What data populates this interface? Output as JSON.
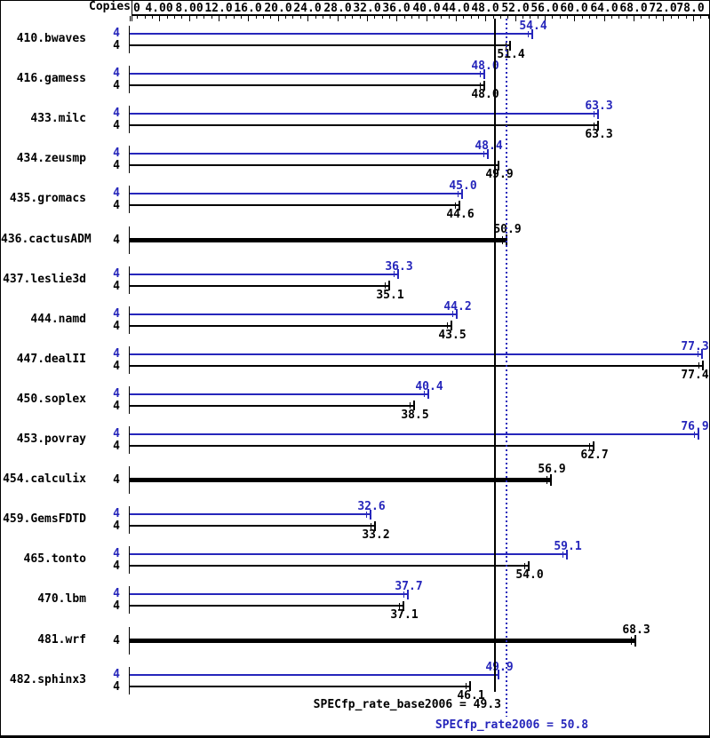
{
  "colors": {
    "peak_blue": "#2626bb",
    "base_black": "#000000",
    "background": "#ffffff"
  },
  "header": {
    "copies_label": "Copies"
  },
  "axis": {
    "tick_labels": [
      "0",
      "4.00",
      "8.00",
      "12.0",
      "16.0",
      "20.0",
      "24.0",
      "28.0",
      "32.0",
      "36.0",
      "40.0",
      "44.0",
      "48.0",
      "52.0",
      "56.0",
      "60.0",
      "64.0",
      "68.0",
      "72.0",
      "78.0"
    ]
  },
  "benchmarks": [
    {
      "name": "410.bwaves",
      "copies": 4,
      "peak": 54.4,
      "base": 51.4,
      "basepeak": false
    },
    {
      "name": "416.gamess",
      "copies": 4,
      "peak": 48.0,
      "base": 48.0,
      "basepeak": false
    },
    {
      "name": "433.milc",
      "copies": 4,
      "peak": 63.3,
      "base": 63.3,
      "basepeak": false
    },
    {
      "name": "434.zeusmp",
      "copies": 4,
      "peak": 48.4,
      "base": 49.9,
      "basepeak": false
    },
    {
      "name": "435.gromacs",
      "copies": 4,
      "peak": 45.0,
      "base": 44.6,
      "basepeak": false
    },
    {
      "name": "436.cactusADM",
      "copies": 4,
      "value": 50.9,
      "basepeak": true
    },
    {
      "name": "437.leslie3d",
      "copies": 4,
      "peak": 36.3,
      "base": 35.1,
      "basepeak": false
    },
    {
      "name": "444.namd",
      "copies": 4,
      "peak": 44.2,
      "base": 43.5,
      "basepeak": false
    },
    {
      "name": "447.dealII",
      "copies": 4,
      "peak": 77.3,
      "base": 77.4,
      "basepeak": false
    },
    {
      "name": "450.soplex",
      "copies": 4,
      "peak": 40.4,
      "base": 38.5,
      "basepeak": false
    },
    {
      "name": "453.povray",
      "copies": 4,
      "peak": 76.9,
      "base": 62.7,
      "basepeak": false
    },
    {
      "name": "454.calculix",
      "copies": 4,
      "value": 56.9,
      "basepeak": true
    },
    {
      "name": "459.GemsFDTD",
      "copies": 4,
      "peak": 32.6,
      "base": 33.2,
      "basepeak": false
    },
    {
      "name": "465.tonto",
      "copies": 4,
      "peak": 59.1,
      "base": 54.0,
      "basepeak": false
    },
    {
      "name": "470.lbm",
      "copies": 4,
      "peak": 37.7,
      "base": 37.1,
      "basepeak": false
    },
    {
      "name": "481.wrf",
      "copies": 4,
      "value": 68.3,
      "basepeak": true
    },
    {
      "name": "482.sphinx3",
      "copies": 4,
      "peak": 49.9,
      "base": 46.1,
      "basepeak": false
    }
  ],
  "summary": {
    "base_text": "SPECfp_rate_base2006 = 49.3",
    "peak_text": "SPECfp_rate2006 = 50.8",
    "base_value": 49.3,
    "peak_value": 50.8
  },
  "chart_data": {
    "type": "bar",
    "orientation": "horizontal",
    "title": "",
    "xlabel": "",
    "ylabel": "",
    "xlim": [
      0,
      78.5
    ],
    "grid": false,
    "legend_position": "none",
    "x_tick_labels": [
      "0",
      "4.00",
      "8.00",
      "12.0",
      "16.0",
      "20.0",
      "24.0",
      "28.0",
      "32.0",
      "36.0",
      "40.0",
      "44.0",
      "48.0",
      "52.0",
      "56.0",
      "60.0",
      "64.0",
      "68.0",
      "72.0",
      "78.0"
    ],
    "categories": [
      "410.bwaves",
      "416.gamess",
      "433.milc",
      "434.zeusmp",
      "435.gromacs",
      "436.cactusADM",
      "437.leslie3d",
      "444.namd",
      "447.dealII",
      "450.soplex",
      "453.povray",
      "454.calculix",
      "459.GemsFDTD",
      "465.tonto",
      "470.lbm",
      "481.wrf",
      "482.sphinx3"
    ],
    "copies": [
      4,
      4,
      4,
      4,
      4,
      4,
      4,
      4,
      4,
      4,
      4,
      4,
      4,
      4,
      4,
      4,
      4
    ],
    "series": [
      {
        "name": "SPECfp_rate2006 (peak)",
        "color": "#2626bb",
        "values": [
          54.4,
          48.0,
          63.3,
          48.4,
          45.0,
          50.9,
          36.3,
          44.2,
          77.3,
          40.4,
          76.9,
          56.9,
          32.6,
          59.1,
          37.7,
          68.3,
          49.9
        ]
      },
      {
        "name": "SPECfp_rate_base2006 (base)",
        "color": "#000000",
        "values": [
          51.4,
          48.0,
          63.3,
          49.9,
          44.6,
          50.9,
          35.1,
          43.5,
          77.4,
          38.5,
          62.7,
          56.9,
          33.2,
          54.0,
          37.1,
          68.3,
          46.1
        ]
      }
    ],
    "basepeak_rows": [
      "436.cactusADM",
      "454.calculix",
      "481.wrf"
    ],
    "reference_lines": [
      {
        "label": "SPECfp_rate_base2006 = 49.3",
        "value": 49.3,
        "style": "solid",
        "color": "#000000"
      },
      {
        "label": "SPECfp_rate2006 = 50.8",
        "value": 50.8,
        "style": "dotted",
        "color": "#2626bb"
      }
    ]
  }
}
